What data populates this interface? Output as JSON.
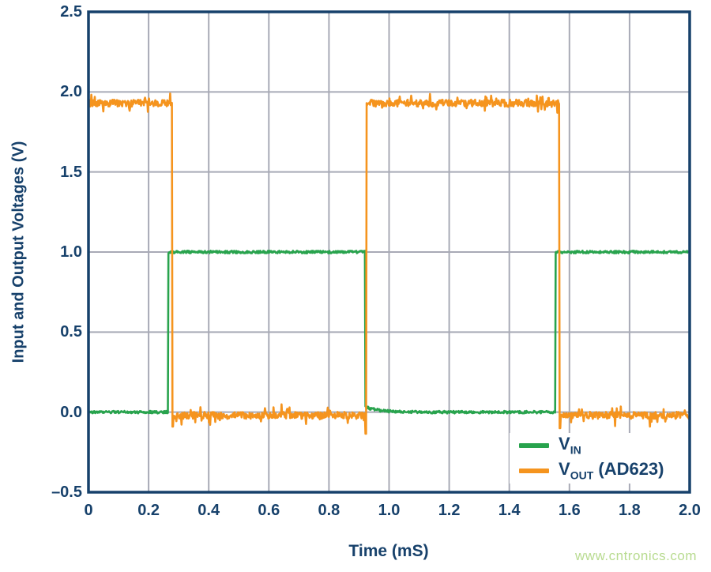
{
  "figure": {
    "watermark": "www.cntronics.com"
  },
  "colors": {
    "navy": "#17416b",
    "grid": "#a8aab6",
    "green": "#28a34d",
    "orange": "#f5941e",
    "watermark_green": "#b8db90",
    "background": "#ffffff"
  },
  "legend": {
    "position": "lower-right",
    "items": [
      {
        "main": "V",
        "sub": "IN",
        "rest": "",
        "color": "#28a34d"
      },
      {
        "main": "V",
        "sub": "OUT",
        "rest": " (AD623)",
        "color": "#f5941e"
      }
    ]
  },
  "chart_data": {
    "type": "line",
    "title": "",
    "xlabel": "Time (mS)",
    "ylabel": "Input and Output Voltages (V)",
    "xlim": [
      0,
      2.0
    ],
    "ylim": [
      -0.5,
      2.5
    ],
    "grid": true,
    "legend_position": "lower right",
    "x_ticks": [
      {
        "v": 0.0,
        "label": "0"
      },
      {
        "v": 0.2,
        "label": "0.2"
      },
      {
        "v": 0.4,
        "label": "0.4"
      },
      {
        "v": 0.6,
        "label": "0.6"
      },
      {
        "v": 0.8,
        "label": "0.8"
      },
      {
        "v": 1.0,
        "label": "1.0"
      },
      {
        "v": 1.2,
        "label": "1.2"
      },
      {
        "v": 1.4,
        "label": "1.4"
      },
      {
        "v": 1.6,
        "label": "1.6"
      },
      {
        "v": 1.8,
        "label": "1.8"
      },
      {
        "v": 2.0,
        "label": "2.0"
      }
    ],
    "y_ticks": [
      {
        "v": 2.5,
        "label": "2.5"
      },
      {
        "v": 2.0,
        "label": "2.0"
      },
      {
        "v": 1.5,
        "label": "1.5"
      },
      {
        "v": 1.0,
        "label": "1.0"
      },
      {
        "v": 0.5,
        "label": "0.5"
      },
      {
        "v": 0.0,
        "label": "0.0"
      },
      {
        "v": -0.5,
        "label": "–0.5"
      }
    ],
    "series": [
      {
        "name": "V_IN",
        "color": "#28a34d",
        "waveform": "square",
        "levels": {
          "low": 0.0,
          "high": 1.0
        },
        "segments": [
          [
            0.0,
            0.266,
            0.0
          ],
          [
            0.266,
            0.921,
            1.0
          ],
          [
            0.921,
            1.553,
            0.0
          ],
          [
            1.553,
            2.0,
            1.0
          ]
        ],
        "noise_base": 0.008,
        "noise_spike": 0,
        "spike_prob": 0,
        "post_fall_settle": {
          "t": 0.921,
          "amp": 0.032,
          "tau": 0.045
        }
      },
      {
        "name": "V_OUT (AD623)",
        "color": "#f5941e",
        "waveform": "square",
        "levels": {
          "low": -0.02,
          "high": 1.93
        },
        "segments": [
          [
            0.0,
            0.279,
            1.93
          ],
          [
            0.279,
            0.925,
            -0.02
          ],
          [
            0.925,
            1.566,
            1.93
          ],
          [
            1.566,
            2.0,
            -0.02
          ]
        ],
        "noise_base": 0.022,
        "noise_spike": 0.055,
        "spike_prob": 0.12,
        "edge_spikes": [
          {
            "t": 0.281,
            "v": -0.09
          },
          {
            "t": 0.9225,
            "v": -0.135
          },
          {
            "t": 1.568,
            "v": -0.1
          }
        ]
      }
    ]
  }
}
